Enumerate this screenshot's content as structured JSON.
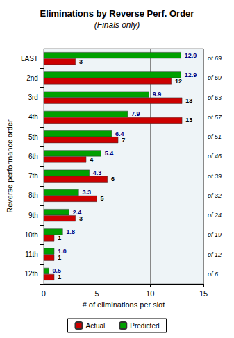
{
  "chart_data": {
    "type": "bar",
    "title": "Eliminations by Reverse Perf. Order",
    "subtitle": "(Finals only)",
    "x_label": "# of eliminations per slot",
    "y_label": "Reverse performance order",
    "orientation": "horizontal",
    "categories": [
      "LAST",
      "2nd",
      "3rd",
      "4th",
      "5th",
      "6th",
      "7th",
      "8th",
      "9th",
      "10th",
      "11th",
      "12th"
    ],
    "annotations": [
      "of 69",
      "of 69",
      "of 63",
      "of 57",
      "of 51",
      "of 46",
      "of 39",
      "of 32",
      "of 24",
      "of 19",
      "of 12",
      "of 6"
    ],
    "series": [
      {
        "name": "Actual",
        "color": "#cc0000",
        "values": [
          3,
          12,
          13,
          13,
          7,
          4,
          6,
          5,
          3,
          1,
          1,
          1
        ]
      },
      {
        "name": "Predicted",
        "color": "#00a000",
        "values": [
          12.9,
          12.9,
          9.9,
          7.9,
          6.4,
          5.4,
          4.3,
          3.3,
          2.4,
          1.8,
          1.0,
          0.5
        ],
        "value_labels": [
          "12.9",
          "12.9",
          "9.9",
          "7.9",
          "6.4",
          "5.4",
          "4.3",
          "3.3",
          "2.4",
          "1.8",
          "1.0",
          "0.5"
        ]
      }
    ],
    "xlim": [
      0,
      15
    ],
    "xticks": [
      0,
      5,
      10,
      15
    ],
    "grid": true,
    "data_labels": true,
    "legend": "bottom"
  }
}
